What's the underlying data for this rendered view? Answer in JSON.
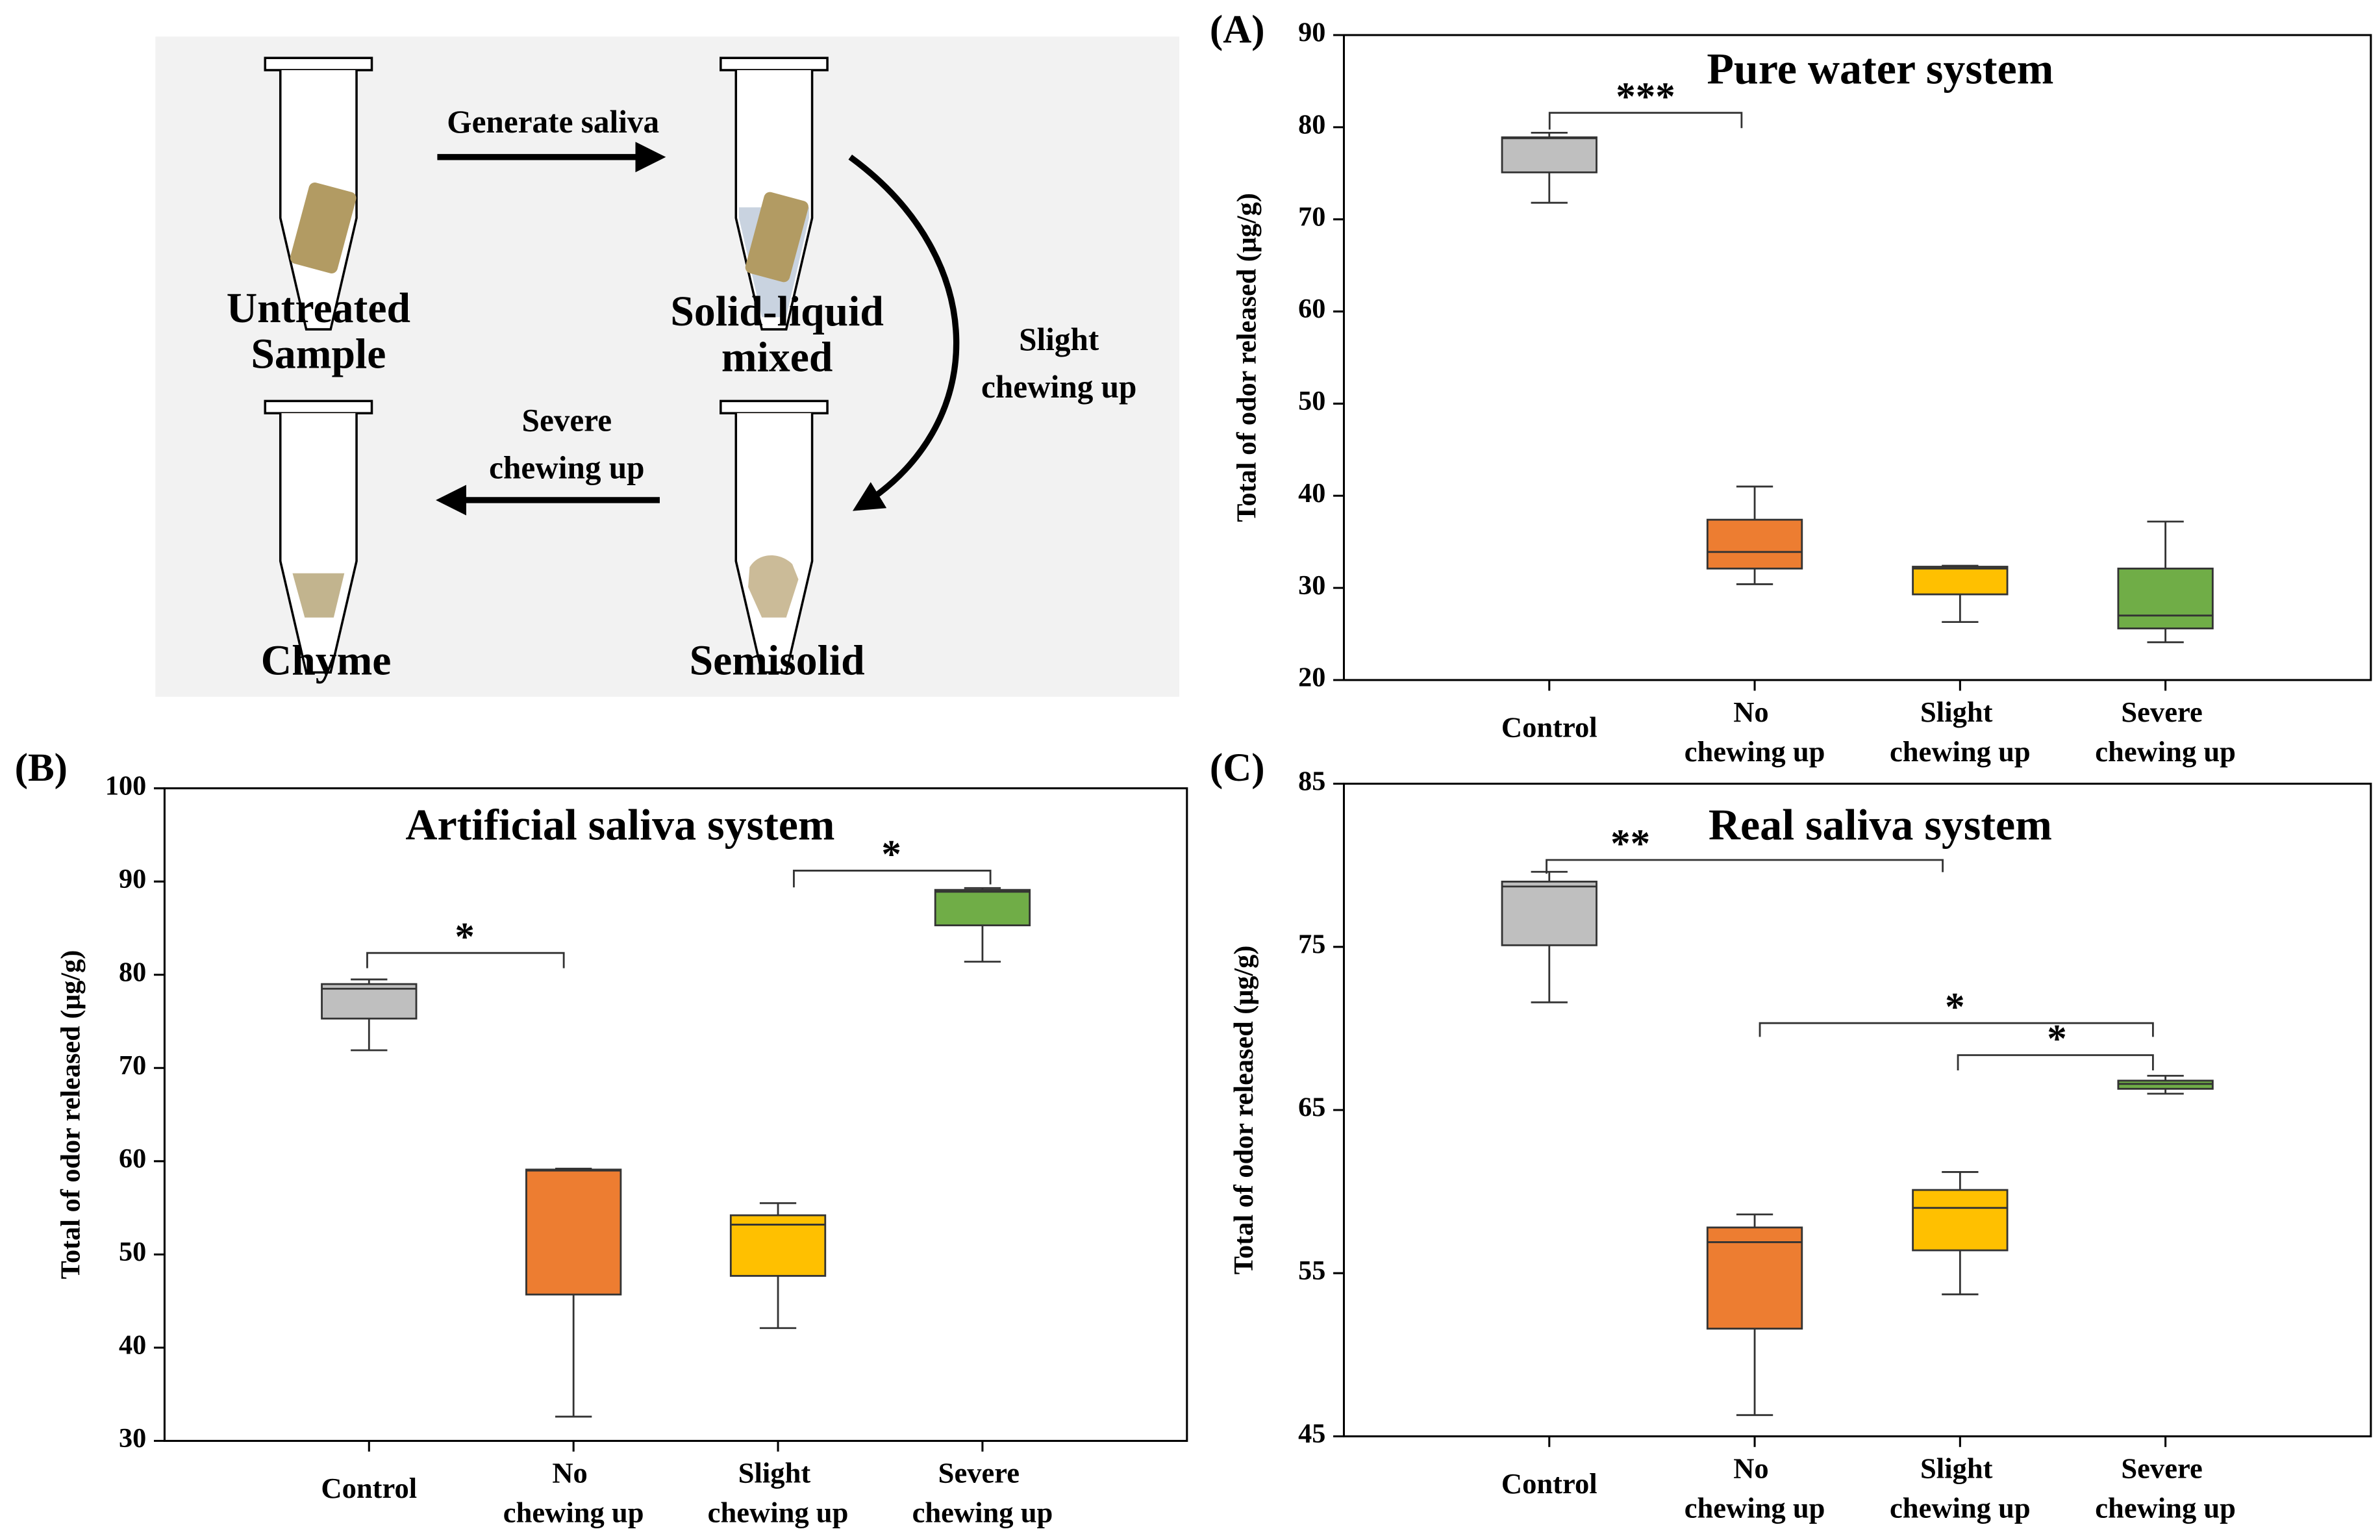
{
  "diagram": {
    "arrow_top": "Generate saliva",
    "arrow_right": [
      "Slight",
      "chewing up"
    ],
    "arrow_bottom": [
      "Severe",
      "chewing up"
    ],
    "tubes": [
      {
        "label": [
          "Untreated",
          "Sample"
        ]
      },
      {
        "label": [
          "Solid-liquid",
          "mixed"
        ]
      },
      {
        "label": [
          "Chyme"
        ]
      },
      {
        "label": [
          "Semisolid"
        ]
      }
    ]
  },
  "chart_data": [
    {
      "type": "box",
      "panel": "(A)",
      "title": "Pure water system",
      "ylabel": "Total of odor released (μg/g)",
      "categories": [
        "Control",
        "No chewing up",
        "Slight chewing up",
        "Severe chewing up"
      ],
      "colors": [
        "#bfbfbf",
        "#ed7d31",
        "#ffc000",
        "#70ad47"
      ],
      "whisker_low": [
        71.8,
        30.4,
        26.3,
        24.1
      ],
      "q1": [
        75.1,
        32.1,
        29.3,
        25.6
      ],
      "median": [
        78.8,
        33.9,
        32.1,
        27.0
      ],
      "q3": [
        78.9,
        37.4,
        32.3,
        32.1
      ],
      "whisker_high": [
        79.4,
        41.0,
        32.4,
        37.2
      ],
      "ylim": [
        20,
        90
      ],
      "yticks": [
        20,
        30,
        40,
        50,
        60,
        70,
        80,
        90
      ],
      "annotations": [
        "***"
      ]
    },
    {
      "type": "box",
      "panel": "(B)",
      "title": "Artificial saliva system",
      "ylabel": "Total of odor released (μg/g)",
      "categories": [
        "Control",
        "No chewing up",
        "Slight chewing up",
        "Severe chewing up"
      ],
      "colors": [
        "#bfbfbf",
        "#ed7d31",
        "#ffc000",
        "#70ad47"
      ],
      "whisker_low": [
        71.9,
        32.6,
        42.1,
        81.4
      ],
      "q1": [
        75.3,
        45.7,
        47.7,
        85.3
      ],
      "median": [
        78.5,
        59.0,
        53.2,
        88.9
      ],
      "q3": [
        79.0,
        59.1,
        54.2,
        89.1
      ],
      "whisker_high": [
        79.5,
        59.2,
        55.5,
        89.3
      ],
      "ylim": [
        30,
        100
      ],
      "yticks": [
        30,
        40,
        50,
        60,
        70,
        80,
        90,
        100
      ],
      "annotations": [
        "*",
        "*"
      ]
    },
    {
      "type": "box",
      "panel": "(C)",
      "title": "Real saliva system",
      "ylabel": "Total of odor released (μg/g)",
      "categories": [
        "Control",
        "No chewing up",
        "Slight chewing up",
        "Severe chewing up"
      ],
      "colors": [
        "#bfbfbf",
        "#ed7d31",
        "#ffc000",
        "#70ad47"
      ],
      "whisker_low": [
        71.6,
        46.3,
        53.7,
        66.0
      ],
      "q1": [
        75.1,
        51.6,
        56.4,
        66.3
      ],
      "median": [
        78.7,
        56.9,
        59.0,
        66.6
      ],
      "q3": [
        79.0,
        57.8,
        60.1,
        66.8
      ],
      "whisker_high": [
        79.6,
        58.6,
        61.2,
        67.1
      ],
      "ylim": [
        45,
        85
      ],
      "yticks": [
        45,
        55,
        65,
        75,
        85
      ],
      "annotations": [
        "**",
        "*",
        "*"
      ]
    }
  ]
}
